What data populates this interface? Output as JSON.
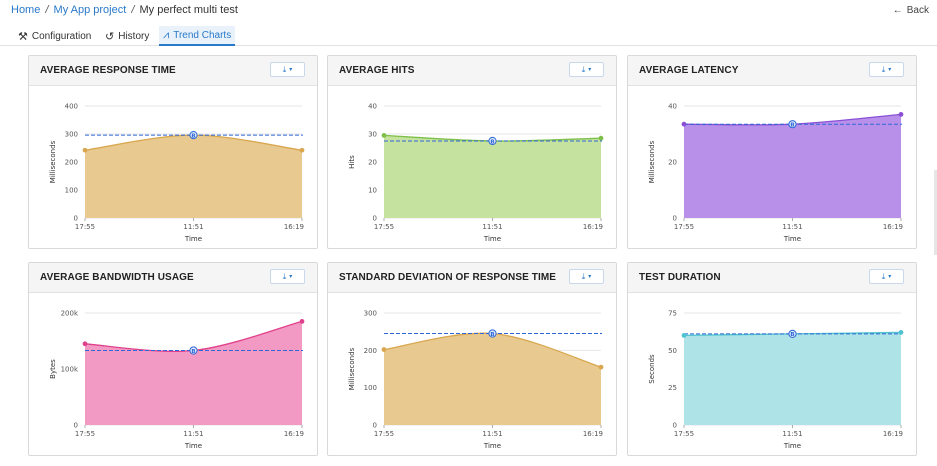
{
  "breadcrumb": {
    "home": "Home",
    "sep1": "/",
    "project": "My App project",
    "sep2": "/",
    "current": "My perfect multi test"
  },
  "back": {
    "icon": "arrow-left-icon",
    "label": "Back"
  },
  "tabs": [
    {
      "label": "Configuration",
      "icon": "wrench-icon",
      "glyph": "⚒"
    },
    {
      "label": "History",
      "icon": "history-icon",
      "glyph": "↺"
    },
    {
      "label": "Trend Charts",
      "icon": "chart-icon",
      "glyph": "⩘"
    }
  ],
  "download_icon": "⤓",
  "caret_icon": "▾",
  "chart_data": [
    {
      "type": "area",
      "title": "AVERAGE RESPONSE TIME",
      "xlabel": "Time",
      "ylabel": "Milliseconds",
      "x": [
        "17:55",
        "11:51",
        "16:19"
      ],
      "ylim": [
        0,
        400
      ],
      "yticks": [
        "0",
        "100",
        "200",
        "300",
        "400"
      ],
      "ytickvals": [
        0,
        100,
        200,
        300,
        400
      ],
      "series": [
        {
          "values": [
            242,
            296,
            242
          ],
          "fill": "#e8c98f",
          "stroke": "#d9a74f"
        }
      ],
      "baseline": {
        "value": 296,
        "at_index": 1,
        "marker": "B",
        "color": "#2f67d8"
      }
    },
    {
      "type": "area",
      "title": "AVERAGE HITS",
      "xlabel": "Time",
      "ylabel": "Hits",
      "x": [
        "17:55",
        "11:51",
        "16:19"
      ],
      "ylim": [
        0,
        40
      ],
      "yticks": [
        "0",
        "10",
        "20",
        "30",
        "40"
      ],
      "ytickvals": [
        0,
        10,
        20,
        30,
        40
      ],
      "series": [
        {
          "values": [
            29.5,
            27.5,
            28.5
          ],
          "fill": "#c5e29e",
          "stroke": "#7cbf4a"
        }
      ],
      "baseline": {
        "value": 27.5,
        "at_index": 1,
        "marker": "B",
        "color": "#2f67d8"
      }
    },
    {
      "type": "area",
      "title": "AVERAGE LATENCY",
      "xlabel": "Time",
      "ylabel": "Milliseconds",
      "x": [
        "17:55",
        "11:51",
        "16:19"
      ],
      "ylim": [
        0,
        40
      ],
      "yticks": [
        "0",
        "20",
        "40"
      ],
      "ytickvals": [
        0,
        20,
        40
      ],
      "series": [
        {
          "values": [
            33.5,
            33.5,
            37
          ],
          "fill": "#b890ea",
          "stroke": "#8b4fd6"
        }
      ],
      "baseline": {
        "value": 33.5,
        "at_index": 1,
        "marker": "B",
        "color": "#2f67d8"
      }
    },
    {
      "type": "area",
      "title": "AVERAGE BANDWIDTH USAGE",
      "xlabel": "Time",
      "ylabel": "Bytes",
      "x": [
        "17:55",
        "11:51",
        "16:19"
      ],
      "ylim": [
        0,
        200000
      ],
      "yticks": [
        "0",
        "100k",
        "200k"
      ],
      "ytickvals": [
        0,
        100000,
        200000
      ],
      "series": [
        {
          "values": [
            145000,
            133000,
            185000
          ],
          "fill": "#f39ac4",
          "stroke": "#e0418c"
        }
      ],
      "baseline": {
        "value": 133000,
        "at_index": 1,
        "marker": "B",
        "color": "#2f67d8"
      }
    },
    {
      "type": "area",
      "title": "STANDARD DEVIATION OF RESPONSE TIME",
      "xlabel": "Time",
      "ylabel": "Milliseconds",
      "x": [
        "17:55",
        "11:51",
        "16:19"
      ],
      "ylim": [
        0,
        300
      ],
      "yticks": [
        "0",
        "100",
        "200",
        "300"
      ],
      "ytickvals": [
        0,
        100,
        200,
        300
      ],
      "series": [
        {
          "values": [
            202,
            245,
            155
          ],
          "fill": "#e8c98f",
          "stroke": "#d9a74f"
        }
      ],
      "baseline": {
        "value": 245,
        "at_index": 1,
        "marker": "B",
        "color": "#2f67d8"
      }
    },
    {
      "type": "area",
      "title": "TEST DURATION",
      "xlabel": "Time",
      "ylabel": "Seconds",
      "x": [
        "17:55",
        "11:51",
        "16:19"
      ],
      "ylim": [
        0,
        75
      ],
      "yticks": [
        "0",
        "25",
        "50",
        "75"
      ],
      "ytickvals": [
        0,
        25,
        50,
        75
      ],
      "series": [
        {
          "values": [
            60,
            61,
            62
          ],
          "fill": "#aee4e8",
          "stroke": "#4fc3cf"
        }
      ],
      "baseline": {
        "value": 61,
        "at_index": 1,
        "marker": "B",
        "color": "#2f67d8"
      }
    }
  ]
}
